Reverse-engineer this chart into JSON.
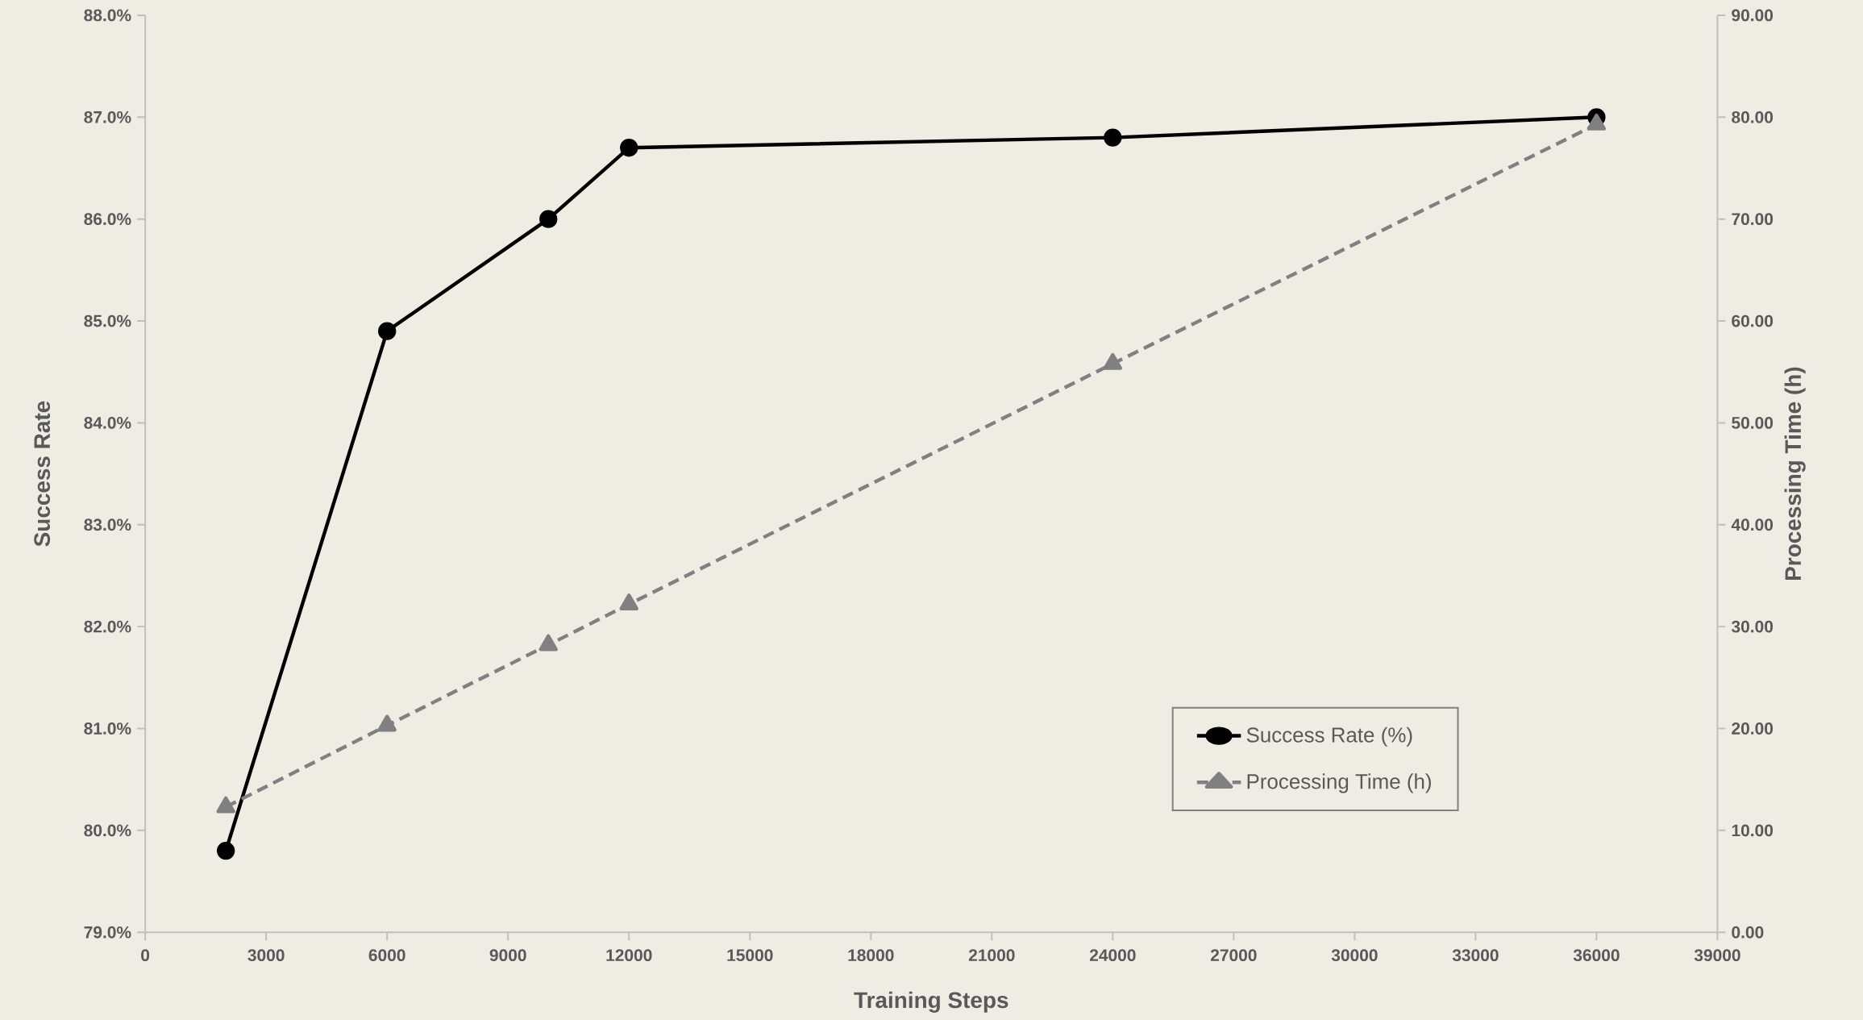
{
  "chart_data": {
    "type": "line",
    "xlabel": "Training Steps",
    "ylabel": "Success Rate",
    "y2label": "Processing Time (h)",
    "x": [
      2000,
      6000,
      10000,
      12000,
      24000,
      36000
    ],
    "series": [
      {
        "name": "Success Rate (%)",
        "color": "#000000",
        "values": [
          79.8,
          84.9,
          86.0,
          86.7,
          86.8,
          87.0
        ],
        "marker": "circle",
        "line_style": "solid"
      },
      {
        "name": "Processing Time (h)",
        "color": "#808080",
        "values": [
          12.3,
          20.3,
          28.2,
          32.2,
          55.8,
          79.3
        ],
        "axis": "y2",
        "marker": "triangle",
        "line_style": "dashed"
      }
    ],
    "xlim": [
      0,
      39000
    ],
    "xticks": [
      0,
      3000,
      6000,
      9000,
      12000,
      15000,
      18000,
      21000,
      24000,
      27000,
      30000,
      33000,
      36000,
      39000
    ],
    "ylim": [
      79,
      88
    ],
    "yticks": [
      {
        "value": 79,
        "label": "79.0%"
      },
      {
        "value": 80,
        "label": "80.0%"
      },
      {
        "value": 81,
        "label": "81.0%"
      },
      {
        "value": 82,
        "label": "82.0%"
      },
      {
        "value": 83,
        "label": "83.0%"
      },
      {
        "value": 84,
        "label": "84.0%"
      },
      {
        "value": 85,
        "label": "85.0%"
      },
      {
        "value": 86,
        "label": "86.0%"
      },
      {
        "value": 87,
        "label": "87.0%"
      },
      {
        "value": 88,
        "label": "88.0%"
      }
    ],
    "y2lim": [
      0,
      90
    ],
    "y2ticks": [
      {
        "value": 0,
        "label": "0.00"
      },
      {
        "value": 10,
        "label": "10.00"
      },
      {
        "value": 20,
        "label": "20.00"
      },
      {
        "value": 30,
        "label": "30.00"
      },
      {
        "value": 40,
        "label": "40.00"
      },
      {
        "value": 50,
        "label": "50.00"
      },
      {
        "value": 60,
        "label": "60.00"
      },
      {
        "value": 70,
        "label": "70.00"
      },
      {
        "value": 80,
        "label": "80.00"
      },
      {
        "value": 90,
        "label": "90.00"
      }
    ],
    "grid": false,
    "legend": "bottom right"
  }
}
